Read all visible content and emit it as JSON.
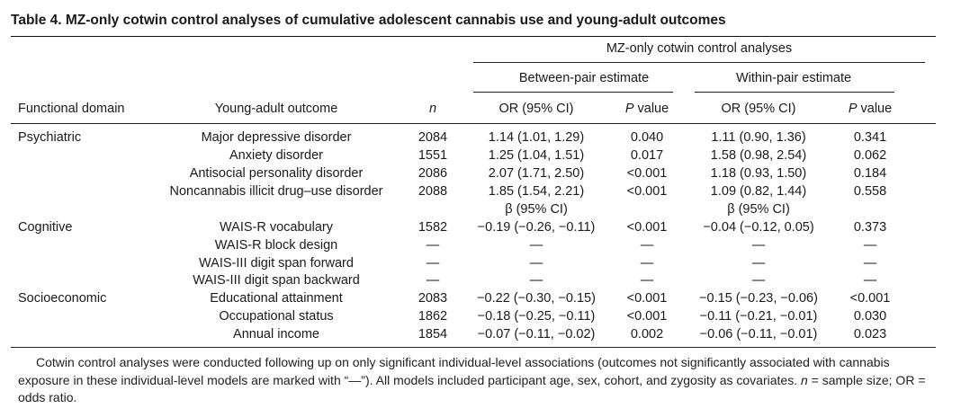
{
  "title": "Table 4.   MZ-only cotwin control analyses of cumulative adolescent cannabis use and young-adult outcomes",
  "spanner": "MZ-only cotwin control analyses",
  "between_label": "Between-pair estimate",
  "within_label": "Within-pair estimate",
  "columns": {
    "domain": "Functional domain",
    "outcome": "Young-adult outcome",
    "n": "n",
    "b_or": "OR (95% CI)",
    "b_p": "P value",
    "w_or": "OR (95% CI)",
    "w_p": "P value"
  },
  "beta_label": "β (95% CI)",
  "domains": [
    "Psychiatric",
    "Cognitive",
    "Socioeconomic"
  ],
  "rows": [
    {
      "outcome": "Major depressive disorder",
      "n": "2084",
      "b_est": "1.14 (1.01, 1.29)",
      "b_p": "0.040",
      "w_est": "1.11 (0.90, 1.36)",
      "w_p": "0.341"
    },
    {
      "outcome": "Anxiety disorder",
      "n": "1551",
      "b_est": "1.25 (1.04, 1.51)",
      "b_p": "0.017",
      "w_est": "1.58 (0.98, 2.54)",
      "w_p": "0.062"
    },
    {
      "outcome": "Antisocial personality disorder",
      "n": "2086",
      "b_est": "2.07 (1.71, 2.50)",
      "b_p": "<0.001",
      "w_est": "1.18 (0.93, 1.50)",
      "w_p": "0.184"
    },
    {
      "outcome": "Noncannabis illicit drug–use disorder",
      "n": "2088",
      "b_est": "1.85 (1.54, 2.21)",
      "b_p": "<0.001",
      "w_est": "1.09 (0.82, 1.44)",
      "w_p": "0.558"
    },
    {
      "outcome": "WAIS-R vocabulary",
      "n": "1582",
      "b_est": "−0.19 (−0.26, −0.11)",
      "b_p": "<0.001",
      "w_est": "−0.04 (−0.12, 0.05)",
      "w_p": "0.373"
    },
    {
      "outcome": "WAIS-R block design",
      "n": "—",
      "b_est": "—",
      "b_p": "—",
      "w_est": "—",
      "w_p": "—"
    },
    {
      "outcome": "WAIS-III digit span forward",
      "n": "—",
      "b_est": "—",
      "b_p": "—",
      "w_est": "—",
      "w_p": "—"
    },
    {
      "outcome": "WAIS-III digit span backward",
      "n": "—",
      "b_est": "—",
      "b_p": "—",
      "w_est": "—",
      "w_p": "—"
    },
    {
      "outcome": "Educational attainment",
      "n": "2083",
      "b_est": "−0.22 (−0.30, −0.15)",
      "b_p": "<0.001",
      "w_est": "−0.15 (−0.23, −0.06)",
      "w_p": "<0.001"
    },
    {
      "outcome": "Occupational status",
      "n": "1862",
      "b_est": "−0.18 (−0.25, −0.11)",
      "b_p": "<0.001",
      "w_est": "−0.11 (−0.21, −0.01)",
      "w_p": "0.030"
    },
    {
      "outcome": "Annual income",
      "n": "1854",
      "b_est": "−0.07 (−0.11, −0.02)",
      "b_p": "0.002",
      "w_est": "−0.06 (−0.11, −0.01)",
      "w_p": "0.023"
    }
  ],
  "footnote": {
    "text1": "Cotwin control analyses were conducted following up on only significant individual-level associations (outcomes not significantly associated with cannabis exposure in these individual-level models are marked with “—”). All models included participant age, sex, cohort, and zygosity as covariates. ",
    "n_sym": "n",
    "text2": " = sample size; OR = odds ratio."
  }
}
